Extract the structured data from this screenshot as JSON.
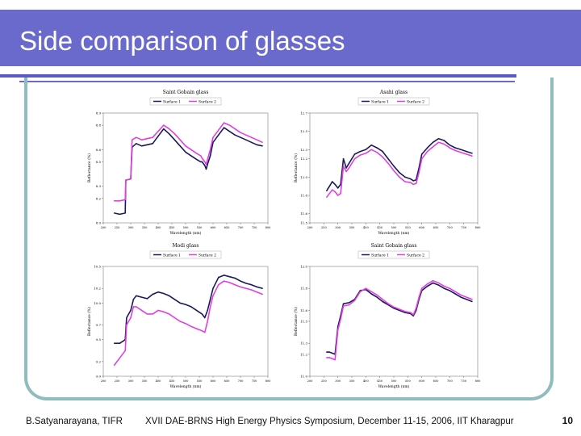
{
  "slide": {
    "title": "Side comparison of glasses",
    "footer_left": "B.Satyanarayana, TIFR",
    "footer_center": "XVII DAE-BRNS High Energy Physics Symposium, December 11-15, 2006, IIT Kharagpur",
    "page_number": "10"
  },
  "colors": {
    "title_bar": "#6a6acd",
    "frame": "#8fbdbd",
    "series1": "#1a1a5a",
    "series2": "#e040e0"
  },
  "chart_data": [
    {
      "type": "line",
      "title": "Saint Gobain glass",
      "xlabel": "Wavelength (nm)",
      "ylabel": "Reflectance (%)",
      "xlim": [
        200,
        800
      ],
      "ylim": [
        8.0,
        8.9
      ],
      "yticks": [
        "8.0",
        "8.2",
        "8.3",
        "8.5",
        "8.6",
        "8.8",
        "8.9"
      ],
      "xticks": [
        "200",
        "250",
        "300",
        "350",
        "400",
        "450",
        "500",
        "550",
        "600",
        "650",
        "700",
        "750",
        "800"
      ],
      "series": [
        {
          "name": "Surface 1",
          "x": [
            240,
            260,
            280,
            282,
            300,
            305,
            320,
            330,
            340,
            360,
            380,
            400,
            420,
            440,
            460,
            480,
            500,
            520,
            540,
            555,
            560,
            570,
            575,
            580,
            590,
            600,
            620,
            640,
            660,
            680,
            700,
            720,
            740,
            760,
            780
          ],
          "y": [
            8.08,
            8.07,
            8.08,
            8.35,
            8.36,
            8.62,
            8.65,
            8.64,
            8.63,
            8.64,
            8.65,
            8.71,
            8.77,
            8.73,
            8.68,
            8.63,
            8.58,
            8.55,
            8.52,
            8.5,
            8.5,
            8.47,
            8.44,
            8.48,
            8.55,
            8.66,
            8.72,
            8.78,
            8.75,
            8.72,
            8.7,
            8.68,
            8.66,
            8.64,
            8.63
          ]
        },
        {
          "name": "Surface 2",
          "x": [
            240,
            260,
            280,
            282,
            300,
            305,
            320,
            330,
            340,
            360,
            380,
            400,
            420,
            440,
            460,
            480,
            500,
            520,
            540,
            555,
            560,
            570,
            575,
            580,
            590,
            600,
            620,
            640,
            660,
            680,
            700,
            720,
            740,
            760,
            780
          ],
          "y": [
            8.18,
            8.18,
            8.19,
            8.35,
            8.36,
            8.68,
            8.7,
            8.69,
            8.68,
            8.69,
            8.7,
            8.75,
            8.8,
            8.77,
            8.73,
            8.68,
            8.63,
            8.6,
            8.57,
            8.55,
            8.53,
            8.5,
            8.48,
            8.52,
            8.6,
            8.7,
            8.76,
            8.82,
            8.8,
            8.77,
            8.74,
            8.72,
            8.7,
            8.68,
            8.66
          ]
        }
      ]
    },
    {
      "type": "line",
      "title": "Asahi glass",
      "xlabel": "Wavelength (nm)",
      "ylabel": "Reflectance (%)",
      "xlim": [
        200,
        800
      ],
      "ylim": [
        11.5,
        12.7
      ],
      "yticks": [
        "11.5",
        "11.6",
        "11.8",
        "12.0",
        "12.2",
        "12.3",
        "12.5",
        "12.7"
      ],
      "xticks": [
        "200",
        "250",
        "300",
        "350",
        "400",
        "450",
        "500",
        "550",
        "600",
        "650",
        "700",
        "750",
        "800"
      ],
      "series": [
        {
          "name": "Surface 1",
          "x": [
            260,
            270,
            280,
            290,
            300,
            310,
            320,
            330,
            340,
            360,
            380,
            400,
            420,
            440,
            460,
            480,
            500,
            520,
            540,
            560,
            570,
            580,
            590,
            600,
            620,
            640,
            660,
            680,
            700,
            720,
            740,
            760,
            780
          ],
          "y": [
            11.85,
            11.9,
            11.95,
            11.92,
            11.88,
            11.92,
            12.2,
            12.1,
            12.15,
            12.25,
            12.28,
            12.3,
            12.35,
            12.32,
            12.28,
            12.2,
            12.12,
            12.05,
            12.0,
            11.98,
            11.96,
            11.97,
            12.1,
            12.25,
            12.32,
            12.38,
            12.42,
            12.4,
            12.35,
            12.32,
            12.3,
            12.28,
            12.26
          ]
        },
        {
          "name": "Surface 2",
          "x": [
            260,
            270,
            280,
            290,
            300,
            310,
            320,
            330,
            340,
            360,
            380,
            400,
            420,
            440,
            460,
            480,
            500,
            520,
            540,
            560,
            570,
            580,
            590,
            600,
            620,
            640,
            660,
            680,
            700,
            720,
            740,
            760,
            780
          ],
          "y": [
            11.78,
            11.82,
            11.86,
            11.84,
            11.8,
            11.82,
            12.12,
            12.06,
            12.1,
            12.2,
            12.24,
            12.26,
            12.3,
            12.27,
            12.22,
            12.15,
            12.07,
            12.0,
            11.95,
            11.94,
            11.92,
            11.93,
            12.05,
            12.2,
            12.28,
            12.33,
            12.38,
            12.36,
            12.32,
            12.29,
            12.27,
            12.25,
            12.23
          ]
        }
      ]
    },
    {
      "type": "line",
      "title": "Modi glass",
      "xlabel": "Wavelength (nm)",
      "ylabel": "Reflectance (%)",
      "xlim": [
        200,
        800
      ],
      "ylim": [
        9.0,
        10.5
      ],
      "yticks": [
        "9.0",
        "9.2",
        "9.5",
        "9.7",
        "10.0",
        "10.2",
        "10.5"
      ],
      "xticks": [
        "200",
        "250",
        "300",
        "350",
        "400",
        "450",
        "500",
        "550",
        "600",
        "650",
        "700",
        "750",
        "800"
      ],
      "series": [
        {
          "name": "Surface 1",
          "x": [
            240,
            260,
            280,
            285,
            300,
            310,
            320,
            340,
            360,
            380,
            400,
            420,
            440,
            460,
            480,
            500,
            520,
            540,
            560,
            570,
            580,
            590,
            600,
            620,
            640,
            660,
            680,
            700,
            720,
            740,
            760,
            780
          ],
          "y": [
            9.45,
            9.45,
            9.5,
            9.8,
            9.9,
            10.05,
            10.1,
            10.08,
            10.06,
            10.12,
            10.15,
            10.13,
            10.1,
            10.05,
            10.0,
            9.98,
            9.95,
            9.9,
            9.85,
            9.8,
            9.9,
            10.05,
            10.2,
            10.35,
            10.38,
            10.36,
            10.34,
            10.3,
            10.27,
            10.25,
            10.22,
            10.2
          ]
        },
        {
          "name": "Surface 2",
          "x": [
            240,
            260,
            280,
            285,
            300,
            310,
            320,
            340,
            360,
            380,
            400,
            420,
            440,
            460,
            480,
            500,
            520,
            540,
            560,
            570,
            580,
            590,
            600,
            620,
            640,
            660,
            680,
            700,
            720,
            740,
            760,
            780
          ],
          "y": [
            9.15,
            9.25,
            9.35,
            9.7,
            9.8,
            9.95,
            9.95,
            9.9,
            9.85,
            9.85,
            9.9,
            9.88,
            9.85,
            9.8,
            9.75,
            9.72,
            9.68,
            9.65,
            9.62,
            9.6,
            9.75,
            9.95,
            10.1,
            10.25,
            10.3,
            10.28,
            10.25,
            10.22,
            10.2,
            10.18,
            10.15,
            10.12
          ]
        }
      ]
    },
    {
      "type": "line",
      "title": "Saint Gobain glass",
      "xlabel": "Wavelength (nm)",
      "ylabel": "Reflectance (%)",
      "xlim": [
        200,
        800
      ],
      "ylim": [
        11.0,
        12.0
      ],
      "yticks": [
        "11.0",
        "11.2",
        "11.3",
        "11.5",
        "11.6",
        "11.8",
        "12.0"
      ],
      "xticks": [
        "200",
        "250",
        "300",
        "350",
        "400",
        "450",
        "500",
        "550",
        "600",
        "650",
        "700",
        "750",
        "800"
      ],
      "series": [
        {
          "name": "Surface 1",
          "x": [
            260,
            270,
            280,
            290,
            300,
            310,
            320,
            340,
            360,
            380,
            400,
            420,
            440,
            460,
            480,
            500,
            520,
            540,
            560,
            570,
            580,
            590,
            600,
            620,
            640,
            660,
            680,
            700,
            720,
            740,
            760,
            780
          ],
          "y": [
            11.22,
            11.22,
            11.21,
            11.2,
            11.45,
            11.55,
            11.66,
            11.67,
            11.7,
            11.78,
            11.79,
            11.75,
            11.72,
            11.68,
            11.65,
            11.62,
            11.6,
            11.58,
            11.57,
            11.55,
            11.6,
            11.7,
            11.78,
            11.82,
            11.85,
            11.83,
            11.8,
            11.78,
            11.75,
            11.72,
            11.7,
            11.68
          ]
        },
        {
          "name": "Surface 2",
          "x": [
            260,
            270,
            280,
            290,
            300,
            310,
            320,
            340,
            360,
            380,
            400,
            420,
            440,
            460,
            480,
            500,
            520,
            540,
            560,
            570,
            580,
            590,
            600,
            620,
            640,
            660,
            680,
            700,
            720,
            740,
            760,
            780
          ],
          "y": [
            11.17,
            11.17,
            11.16,
            11.15,
            11.42,
            11.52,
            11.64,
            11.65,
            11.69,
            11.77,
            11.8,
            11.77,
            11.74,
            11.7,
            11.66,
            11.63,
            11.61,
            11.59,
            11.58,
            11.56,
            11.62,
            11.72,
            11.8,
            11.84,
            11.87,
            11.85,
            11.82,
            11.8,
            11.77,
            11.74,
            11.72,
            11.7
          ]
        }
      ]
    }
  ]
}
